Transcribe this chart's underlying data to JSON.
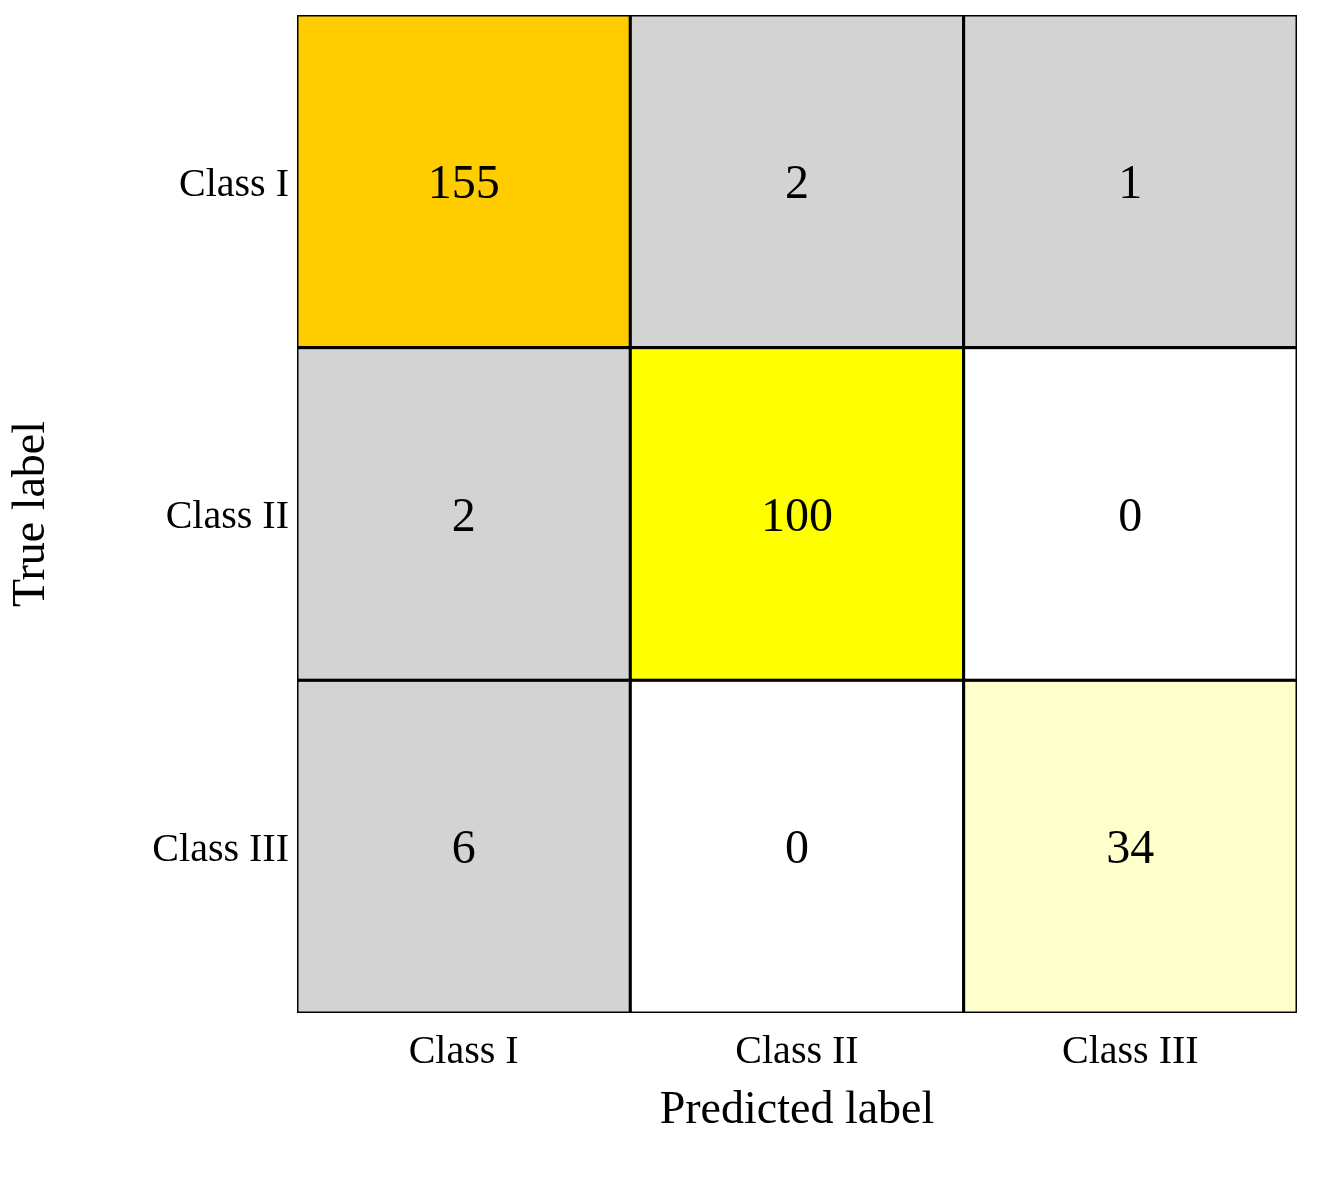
{
  "chart_data": {
    "type": "heatmap",
    "xlabel": "Predicted label",
    "ylabel": "True label",
    "categories": [
      "Class I",
      "Class II",
      "Class III"
    ],
    "y_categories": [
      "Class I",
      "Class II",
      "Class III"
    ],
    "cells": [
      [
        155,
        2,
        1
      ],
      [
        2,
        100,
        0
      ],
      [
        6,
        0,
        34
      ]
    ],
    "colors": [
      [
        "#ffcc00",
        "#d3d3d3",
        "#d3d3d3"
      ],
      [
        "#d3d3d3",
        "#ffff00",
        "#ffffff"
      ],
      [
        "#d3d3d3",
        "#ffffff",
        "#ffffcc"
      ]
    ],
    "data_labels": true
  }
}
